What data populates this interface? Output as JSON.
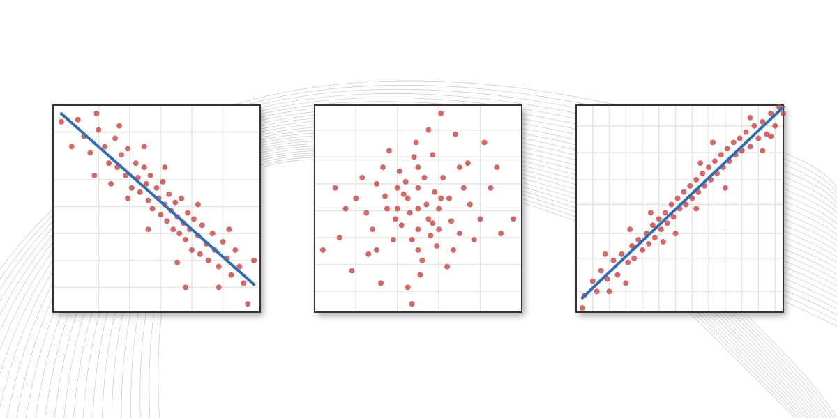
{
  "chart_data": [
    {
      "type": "scatter",
      "color": "#c94242",
      "trendline": true,
      "trendline_color": "#2e6db4",
      "grid": true,
      "xlim": [
        0,
        100
      ],
      "ylim": [
        0,
        100
      ],
      "xticks": [
        22,
        37,
        52,
        67,
        82
      ],
      "yticks": [
        12,
        25,
        38,
        51,
        64,
        87
      ],
      "x": [
        4,
        12,
        21,
        9,
        15,
        18,
        22,
        25,
        27,
        30,
        31,
        33,
        35,
        36,
        38,
        40,
        41,
        42,
        44,
        45,
        46,
        47,
        48,
        50,
        51,
        52,
        53,
        54,
        55,
        56,
        57,
        58,
        59,
        60,
        61,
        62,
        63,
        64,
        65,
        66,
        67,
        68,
        70,
        71,
        72,
        74,
        75,
        77,
        78,
        80,
        82,
        84,
        86,
        88,
        90,
        92,
        46,
        36,
        28,
        60,
        70,
        54,
        20,
        85,
        94,
        97,
        64,
        44,
        80,
        32
      ],
      "values": [
        92,
        93,
        96,
        80,
        85,
        77,
        88,
        80,
        72,
        84,
        70,
        76,
        66,
        79,
        60,
        72,
        65,
        58,
        70,
        62,
        54,
        66,
        50,
        60,
        55,
        47,
        63,
        52,
        44,
        57,
        49,
        40,
        53,
        46,
        38,
        55,
        43,
        35,
        48,
        40,
        30,
        45,
        37,
        28,
        42,
        33,
        25,
        38,
        30,
        22,
        34,
        26,
        18,
        30,
        22,
        14,
        40,
        55,
        62,
        24,
        52,
        70,
        66,
        40,
        4,
        25,
        12,
        80,
        12,
        90
      ]
    },
    {
      "type": "scatter",
      "color": "#c94242",
      "trendline": false,
      "grid": true,
      "xlim": [
        0,
        100
      ],
      "ylim": [
        0,
        100
      ],
      "xticks": [
        20,
        40,
        60,
        80
      ],
      "yticks": [
        10,
        23,
        36,
        49,
        62,
        75,
        88
      ],
      "x": [
        61,
        47,
        4,
        96,
        50,
        45,
        55,
        40,
        60,
        35,
        65,
        50,
        50,
        30,
        70,
        42,
        58,
        25,
        75,
        48,
        52,
        38,
        62,
        33,
        67,
        44,
        56,
        28,
        72,
        46,
        54,
        40,
        60,
        50,
        50,
        20,
        80,
        36,
        64,
        30,
        70,
        43,
        57,
        23,
        77,
        49,
        51,
        15,
        85,
        39,
        61,
        47,
        53,
        34,
        66,
        26,
        74,
        41,
        59,
        12,
        88,
        55,
        45,
        82,
        18,
        90,
        10,
        68,
        32,
        57
      ],
      "values": [
        96,
        4,
        30,
        45,
        50,
        55,
        45,
        60,
        40,
        50,
        55,
        70,
        30,
        62,
        38,
        42,
        58,
        48,
        52,
        75,
        25,
        35,
        65,
        70,
        30,
        63,
        37,
        40,
        60,
        48,
        52,
        50,
        50,
        40,
        60,
        55,
        45,
        78,
        22,
        30,
        70,
        57,
        43,
        65,
        35,
        82,
        18,
        50,
        60,
        45,
        55,
        35,
        65,
        56,
        44,
        28,
        72,
        68,
        32,
        36,
        70,
        88,
        12,
        82,
        20,
        38,
        60,
        86,
        14,
        76
      ]
    },
    {
      "type": "scatter",
      "color": "#c94242",
      "trendline": true,
      "trendline_color": "#2e6db4",
      "grid": true,
      "xlim": [
        0,
        100
      ],
      "ylim": [
        0,
        100
      ],
      "xticks": [
        8,
        16,
        24,
        32,
        40,
        48,
        56,
        64,
        72,
        80,
        88,
        96
      ],
      "yticks": [
        10,
        26,
        38,
        52,
        64,
        77,
        90
      ],
      "x": [
        4,
        8,
        10,
        12,
        15,
        18,
        20,
        22,
        25,
        27,
        28,
        30,
        32,
        34,
        35,
        37,
        38,
        40,
        41,
        43,
        44,
        46,
        47,
        49,
        50,
        52,
        53,
        55,
        56,
        58,
        59,
        61,
        62,
        64,
        65,
        67,
        68,
        70,
        71,
        73,
        74,
        76,
        77,
        79,
        80,
        82,
        84,
        86,
        88,
        90,
        92,
        94,
        96,
        98,
        100,
        14,
        24,
        36,
        48,
        60,
        72,
        84,
        26,
        58,
        66,
        42,
        16,
        90,
        3,
        94
      ],
      "values": [
        8,
        15,
        10,
        20,
        16,
        25,
        18,
        28,
        24,
        32,
        26,
        35,
        30,
        38,
        33,
        42,
        36,
        45,
        40,
        48,
        43,
        52,
        46,
        55,
        50,
        58,
        52,
        61,
        55,
        64,
        58,
        67,
        61,
        70,
        64,
        73,
        67,
        76,
        70,
        79,
        73,
        82,
        76,
        84,
        78,
        87,
        80,
        90,
        84,
        92,
        86,
        96,
        90,
        99,
        96,
        28,
        14,
        48,
        38,
        72,
        60,
        94,
        40,
        50,
        82,
        34,
        10,
        78,
        2,
        85
      ]
    }
  ]
}
